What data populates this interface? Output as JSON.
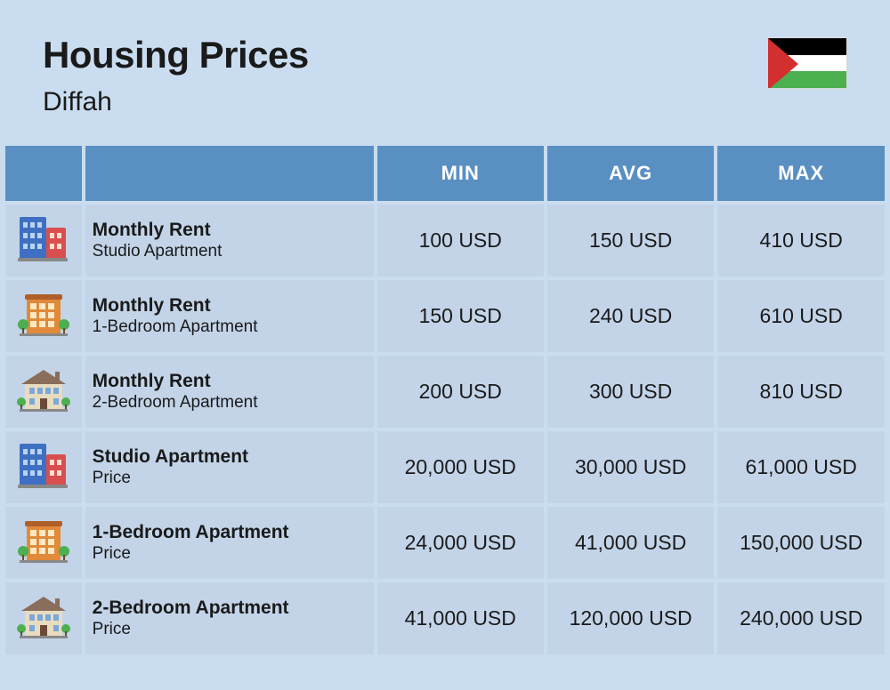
{
  "header": {
    "title": "Housing Prices",
    "location": "Diffah"
  },
  "flag": {
    "stripe_colors": [
      "#000000",
      "#ffffff",
      "#4caf50"
    ],
    "triangle_color": "#d32f2f"
  },
  "table": {
    "header_bg": "#5a8fc2",
    "header_fg": "#ffffff",
    "cell_bg": "#c3d4e8",
    "columns": [
      "MIN",
      "AVG",
      "MAX"
    ],
    "rows": [
      {
        "icon": "building-blue-red",
        "title": "Monthly Rent",
        "subtitle": "Studio Apartment",
        "min": "100 USD",
        "avg": "150 USD",
        "max": "410 USD"
      },
      {
        "icon": "building-orange",
        "title": "Monthly Rent",
        "subtitle": "1-Bedroom Apartment",
        "min": "150 USD",
        "avg": "240 USD",
        "max": "610 USD"
      },
      {
        "icon": "house-beige",
        "title": "Monthly Rent",
        "subtitle": "2-Bedroom Apartment",
        "min": "200 USD",
        "avg": "300 USD",
        "max": "810 USD"
      },
      {
        "icon": "building-blue-red",
        "title": "Studio Apartment",
        "subtitle": "Price",
        "min": "20,000 USD",
        "avg": "30,000 USD",
        "max": "61,000 USD"
      },
      {
        "icon": "building-orange",
        "title": "1-Bedroom Apartment",
        "subtitle": "Price",
        "min": "24,000 USD",
        "avg": "41,000 USD",
        "max": "150,000 USD"
      },
      {
        "icon": "house-beige",
        "title": "2-Bedroom Apartment",
        "subtitle": "Price",
        "min": "41,000 USD",
        "avg": "120,000 USD",
        "max": "240,000 USD"
      }
    ]
  },
  "icons": {
    "building-blue-red": {
      "primary": "#3e6fc2",
      "secondary": "#d94f4f",
      "window": "#b8d4f0"
    },
    "building-orange": {
      "primary": "#e08a3a",
      "window": "#ffe8c2",
      "roof": "#b05f2a",
      "tree": "#4caf50"
    },
    "house-beige": {
      "wall": "#e8dcc0",
      "roof": "#8a6d5a",
      "window": "#7aa8d8",
      "door": "#6b4a3a",
      "tree": "#4caf50"
    }
  },
  "page_bg": "#caddf0"
}
